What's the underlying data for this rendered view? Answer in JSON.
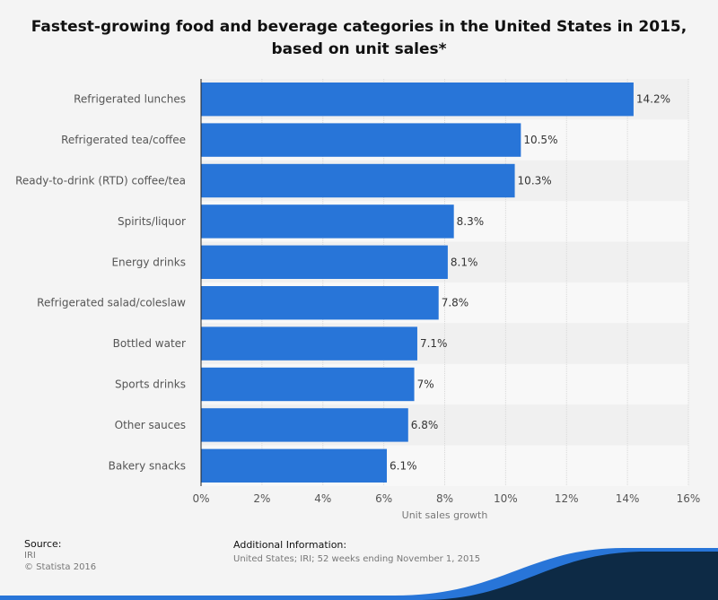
{
  "title": {
    "line1": "Fastest-growing food and beverage categories in the United States in 2015,",
    "line2": "based on unit sales*"
  },
  "chart_data": {
    "type": "bar",
    "orientation": "horizontal",
    "categories": [
      "Refrigerated lunches",
      "Refrigerated tea/coffee",
      "Ready-to-drink (RTD) coffee/tea",
      "Spirits/liquor",
      "Energy drinks",
      "Refrigerated salad/coleslaw",
      "Bottled water",
      "Sports drinks",
      "Other sauces",
      "Bakery snacks"
    ],
    "values": [
      14.2,
      10.5,
      10.3,
      8.3,
      8.1,
      7.8,
      7.1,
      7.0,
      6.8,
      6.1
    ],
    "value_labels": [
      "14.2%",
      "10.5%",
      "10.3%",
      "8.3%",
      "8.1%",
      "7.8%",
      "7.1%",
      "7%",
      "6.8%",
      "6.1%"
    ],
    "xlabel": "Unit sales growth",
    "ylabel": "",
    "xlim": [
      0,
      16
    ],
    "xticks": [
      0,
      2,
      4,
      6,
      8,
      10,
      12,
      14,
      16
    ],
    "xtick_labels": [
      "0%",
      "2%",
      "4%",
      "6%",
      "8%",
      "10%",
      "12%",
      "14%",
      "16%"
    ],
    "grid": true,
    "bar_color": "#2875d8"
  },
  "footer": {
    "source_heading": "Source:",
    "source_name": "IRI",
    "copyright": "© Statista 2016",
    "info_heading": "Additional Information:",
    "info_text": "United States; IRI; 52 weeks ending November 1, 2015"
  },
  "colors": {
    "background": "#f4f4f4",
    "bar": "#2875d8",
    "wave_dark": "#0d2a45",
    "wave_light": "#2875d8"
  }
}
